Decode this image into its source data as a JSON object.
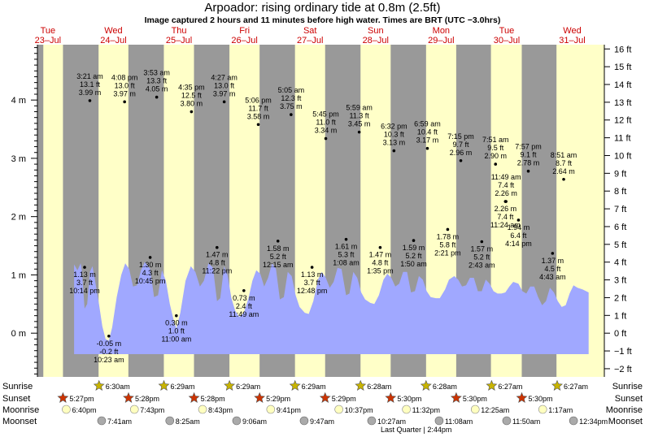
{
  "header": {
    "title": "Arpoador: rising  ordinary tide at 0.8m (2.5ft)",
    "subtitle": "Image captured 2 hours and 11 minutes before high water. Times are BRT (UTC −3.0hrs)"
  },
  "days": [
    {
      "dow": "Tue",
      "date": "23–Jul"
    },
    {
      "dow": "Wed",
      "date": "24–Jul"
    },
    {
      "dow": "Thu",
      "date": "25–Jul"
    },
    {
      "dow": "Fri",
      "date": "26–Jul"
    },
    {
      "dow": "Sat",
      "date": "27–Jul"
    },
    {
      "dow": "Sun",
      "date": "28–Jul"
    },
    {
      "dow": "Mon",
      "date": "29–Jul"
    },
    {
      "dow": "Tue",
      "date": "30–Jul"
    },
    {
      "dow": "Wed",
      "date": "31–Jul"
    }
  ],
  "colors": {
    "day": "#ffffc8",
    "night": "#999999",
    "water": "#a0a8ff",
    "dow_text": "#cc0000",
    "sun_star": "#c8b400",
    "sunset_star": "#cc3300",
    "moon_light": "#ffffc0",
    "moon_dark": "#aaaaaa"
  },
  "chart_data": {
    "type": "area",
    "y_left_label_unit": "m",
    "y_left_ticks": [
      "0 m",
      "1 m",
      "2 m",
      "3 m",
      "4 m"
    ],
    "y_left_values": [
      0,
      1,
      2,
      3,
      4
    ],
    "y_right_ticks": [
      "−2 ft",
      "−1 ft",
      "0 ft",
      "1 ft",
      "2 ft",
      "3 ft",
      "4 ft",
      "5 ft",
      "6 ft",
      "7 ft",
      "8 ft",
      "9 ft",
      "10 ft",
      "11 ft",
      "12 ft",
      "13 ft",
      "14 ft",
      "15 ft",
      "16 ft"
    ],
    "y_right_values_ft": [
      -2,
      -1,
      0,
      1,
      2,
      3,
      4,
      5,
      6,
      7,
      8,
      9,
      10,
      11,
      12,
      13,
      14,
      15,
      16
    ],
    "ylim_m": [
      -0.75,
      4.95
    ],
    "x_unit": "days since 23-Jul 00:00",
    "xlim_days": [
      0.34,
      8.99
    ],
    "daylight": [
      [
        0.43,
        0.73
      ],
      [
        1.273,
        1.728
      ],
      [
        2.269,
        2.729
      ],
      [
        3.27,
        3.73
      ],
      [
        4.27,
        4.73
      ],
      [
        5.27,
        5.73
      ],
      [
        6.27,
        6.73
      ],
      [
        7.26,
        7.73
      ],
      [
        8.26,
        8.99
      ]
    ],
    "extremes": [
      {
        "kind": "high",
        "label": "3:21 am",
        "ft": "13.1 ft",
        "m": "3.99 m",
        "x": 1.14,
        "v": 3.99
      },
      {
        "kind": "low",
        "label": "10:14 pm",
        "ft": "3.7 ft",
        "m": "1.13 m",
        "x": 1.06,
        "v": 1.13
      },
      {
        "kind": "high",
        "label": "4:08 pm",
        "ft": "13.0 ft",
        "m": "3.97 m",
        "x": 1.67,
        "v": 3.97
      },
      {
        "kind": "low",
        "label": "10:23 am",
        "ft": "-0.2 ft",
        "m": "-0.05 m",
        "x": 1.43,
        "v": -0.05
      },
      {
        "kind": "high",
        "label": "3:53 am",
        "ft": "13.3 ft",
        "m": "4.05 m",
        "x": 2.16,
        "v": 4.05
      },
      {
        "kind": "low",
        "label": "10:45 pm",
        "ft": "4.3 ft",
        "m": "1.30 m",
        "x": 2.06,
        "v": 1.3
      },
      {
        "kind": "high",
        "label": "4:35 pm",
        "ft": "12.5 ft",
        "m": "3.80 m",
        "x": 2.69,
        "v": 3.8
      },
      {
        "kind": "low",
        "label": "11:00 am",
        "ft": "1.0 ft",
        "m": "0.30 m",
        "x": 2.46,
        "v": 0.3
      },
      {
        "kind": "high",
        "label": "4:27 am",
        "ft": "13.0 ft",
        "m": "3.97 m",
        "x": 3.19,
        "v": 3.97
      },
      {
        "kind": "low",
        "label": "11:22 pm",
        "ft": "4.8 ft",
        "m": "1.47 m",
        "x": 3.08,
        "v": 1.47
      },
      {
        "kind": "high",
        "label": "5:06 pm",
        "ft": "11.7 ft",
        "m": "3.58 m",
        "x": 3.71,
        "v": 3.58
      },
      {
        "kind": "low",
        "label": "11:49 am",
        "ft": "2.4 ft",
        "m": "0.73 m",
        "x": 3.49,
        "v": 0.73
      },
      {
        "kind": "high",
        "label": "5:05 am",
        "ft": "12.3 ft",
        "m": "3.75 m",
        "x": 4.21,
        "v": 3.75
      },
      {
        "kind": "low",
        "label": "12:15 am",
        "ft": "5.2 ft",
        "m": "1.58 m",
        "x": 4.01,
        "v": 1.58
      },
      {
        "kind": "low",
        "label": "12:48 pm",
        "ft": "3.7 ft",
        "m": "1.13 m",
        "x": 4.53,
        "v": 1.13
      },
      {
        "kind": "high",
        "label": "5:45 pm",
        "ft": "11.0 ft",
        "m": "3.34 m",
        "x": 4.74,
        "v": 3.34
      },
      {
        "kind": "high",
        "label": "5:59 am",
        "ft": "11.3 ft",
        "m": "3.45 m",
        "x": 5.25,
        "v": 3.45
      },
      {
        "kind": "low",
        "label": "1:08 am",
        "ft": "5.3 ft",
        "m": "1.61 m",
        "x": 5.05,
        "v": 1.61
      },
      {
        "kind": "low",
        "label": "1:35 pm",
        "ft": "4.8 ft",
        "m": "1.47 m",
        "x": 5.57,
        "v": 1.47
      },
      {
        "kind": "high",
        "label": "6:32 pm",
        "ft": "10.3 ft",
        "m": "3.13 m",
        "x": 5.78,
        "v": 3.13
      },
      {
        "kind": "high",
        "label": "6:59 am",
        "ft": "10.4 ft",
        "m": "3.17 m",
        "x": 6.29,
        "v": 3.17
      },
      {
        "kind": "low",
        "label": "1:50 am",
        "ft": "5.2 ft",
        "m": "1.59 m",
        "x": 6.08,
        "v": 1.59
      },
      {
        "kind": "low",
        "label": "2:21 pm",
        "ft": "5.8 ft",
        "m": "1.78 m",
        "x": 6.6,
        "v": 1.78
      },
      {
        "kind": "high",
        "label": "7:15 pm",
        "ft": "9.7 ft",
        "m": "2.96 m",
        "x": 6.8,
        "v": 2.96
      },
      {
        "kind": "high",
        "label": "7:51 am",
        "ft": "9.5 ft",
        "m": "2.90 m",
        "x": 7.33,
        "v": 2.9
      },
      {
        "kind": "low",
        "label": "2:43 am",
        "ft": "5.2 ft",
        "m": "1.57 m",
        "x": 7.12,
        "v": 1.57
      },
      {
        "kind": "high",
        "label": "11:49 am",
        "ft": "7.4 ft",
        "m": "2.26 m",
        "x": 7.49,
        "v": 2.26
      },
      {
        "kind": "low",
        "label": "11:24 am",
        "ft": "7.4 ft",
        "m": "2.26 m",
        "x": 7.48,
        "v": 2.26
      },
      {
        "kind": "high",
        "label": "7:57 pm",
        "ft": "9.1 ft",
        "m": "2.78 m",
        "x": 7.83,
        "v": 2.78
      },
      {
        "kind": "low",
        "label": "4:14 pm",
        "ft": "6.4 ft",
        "m": "1.94 m",
        "x": 7.68,
        "v": 1.94
      },
      {
        "kind": "high",
        "label": "8:51 am",
        "ft": "8.7 ft",
        "m": "2.64 m",
        "x": 8.37,
        "v": 2.64
      },
      {
        "kind": "low",
        "label": "4:43 am",
        "ft": "4.5 ft",
        "m": "1.37 m",
        "x": 8.2,
        "v": 1.37
      }
    ],
    "tide_curve": [
      [
        0.9,
        1.18
      ],
      [
        0.95,
        1.08
      ],
      [
        1.0,
        1.2
      ],
      [
        1.02,
        1.05
      ],
      [
        1.06,
        0.42
      ],
      [
        1.1,
        0.5
      ],
      [
        1.14,
        1.05
      ],
      [
        1.18,
        1.15
      ],
      [
        1.22,
        0.9
      ],
      [
        1.28,
        0.5
      ],
      [
        1.33,
        0.12
      ],
      [
        1.38,
        -0.1
      ],
      [
        1.43,
        -0.13
      ],
      [
        1.48,
        0.1
      ],
      [
        1.55,
        0.62
      ],
      [
        1.62,
        1.0
      ],
      [
        1.68,
        1.2
      ],
      [
        1.74,
        1.1
      ],
      [
        1.8,
        0.8
      ],
      [
        1.86,
        0.82
      ],
      [
        1.92,
        1.08
      ],
      [
        1.98,
        1.22
      ],
      [
        2.06,
        1.1
      ],
      [
        2.12,
        0.62
      ],
      [
        2.18,
        0.65
      ],
      [
        2.24,
        1.08
      ],
      [
        2.3,
        0.9
      ],
      [
        2.36,
        0.5
      ],
      [
        2.42,
        0.22
      ],
      [
        2.46,
        0.08
      ],
      [
        2.52,
        0.35
      ],
      [
        2.6,
        0.9
      ],
      [
        2.68,
        1.15
      ],
      [
        2.75,
        1.05
      ],
      [
        2.82,
        0.8
      ],
      [
        2.88,
        0.9
      ],
      [
        2.95,
        1.2
      ],
      [
        3.02,
        1.12
      ],
      [
        3.08,
        0.55
      ],
      [
        3.13,
        0.6
      ],
      [
        3.19,
        1.15
      ],
      [
        3.24,
        1.0
      ],
      [
        3.3,
        0.6
      ],
      [
        3.36,
        0.38
      ],
      [
        3.42,
        0.28
      ],
      [
        3.49,
        0.35
      ],
      [
        3.56,
        0.6
      ],
      [
        3.62,
        0.9
      ],
      [
        3.68,
        1.08
      ],
      [
        3.74,
        1.02
      ],
      [
        3.8,
        0.8
      ],
      [
        3.86,
        0.95
      ],
      [
        3.92,
        1.2
      ],
      [
        3.98,
        1.1
      ],
      [
        4.04,
        0.58
      ],
      [
        4.1,
        0.62
      ],
      [
        4.16,
        1.05
      ],
      [
        4.22,
        0.98
      ],
      [
        4.28,
        0.65
      ],
      [
        4.34,
        0.45
      ],
      [
        4.42,
        0.35
      ],
      [
        4.48,
        0.33
      ],
      [
        4.55,
        0.55
      ],
      [
        4.62,
        0.92
      ],
      [
        4.68,
        1.05
      ],
      [
        4.74,
        0.95
      ],
      [
        4.8,
        0.78
      ],
      [
        4.86,
        0.88
      ],
      [
        4.92,
        1.12
      ],
      [
        4.98,
        1.1
      ],
      [
        5.05,
        0.65
      ],
      [
        5.1,
        0.68
      ],
      [
        5.16,
        1.05
      ],
      [
        5.22,
        0.95
      ],
      [
        5.28,
        0.7
      ],
      [
        5.34,
        0.58
      ],
      [
        5.42,
        0.52
      ],
      [
        5.48,
        0.5
      ],
      [
        5.55,
        0.65
      ],
      [
        5.62,
        0.92
      ],
      [
        5.68,
        1.02
      ],
      [
        5.74,
        0.95
      ],
      [
        5.8,
        0.8
      ],
      [
        5.86,
        0.85
      ],
      [
        5.92,
        1.05
      ],
      [
        5.98,
        1.05
      ],
      [
        6.04,
        0.7
      ],
      [
        6.1,
        0.72
      ],
      [
        6.16,
        0.98
      ],
      [
        6.22,
        0.92
      ],
      [
        6.28,
        0.72
      ],
      [
        6.34,
        0.62
      ],
      [
        6.42,
        0.6
      ],
      [
        6.48,
        0.6
      ],
      [
        6.56,
        0.75
      ],
      [
        6.62,
        0.92
      ],
      [
        6.7,
        0.98
      ],
      [
        6.76,
        0.92
      ],
      [
        6.82,
        0.8
      ],
      [
        6.88,
        0.82
      ],
      [
        6.94,
        0.95
      ],
      [
        7.0,
        0.95
      ],
      [
        7.06,
        0.72
      ],
      [
        7.12,
        0.72
      ],
      [
        7.18,
        0.92
      ],
      [
        7.24,
        0.85
      ],
      [
        7.3,
        0.72
      ],
      [
        7.36,
        0.68
      ],
      [
        7.42,
        0.68
      ],
      [
        7.48,
        0.7
      ],
      [
        7.54,
        0.8
      ],
      [
        7.6,
        0.88
      ],
      [
        7.68,
        0.85
      ],
      [
        7.74,
        0.72
      ],
      [
        7.8,
        0.68
      ],
      [
        7.86,
        0.8
      ],
      [
        7.92,
        0.8
      ],
      [
        7.98,
        0.62
      ],
      [
        8.04,
        0.48
      ],
      [
        8.1,
        0.55
      ],
      [
        8.16,
        0.78
      ],
      [
        8.22,
        0.7
      ],
      [
        8.28,
        0.55
      ],
      [
        8.34,
        0.45
      ],
      [
        8.4,
        0.48
      ],
      [
        8.46,
        0.68
      ],
      [
        8.52,
        0.82
      ],
      [
        8.58,
        0.78
      ],
      [
        8.66,
        0.75
      ],
      [
        8.75,
        0.7
      ]
    ]
  },
  "astro": {
    "row_labels": [
      "Sunrise",
      "Sunset",
      "Moonrise",
      "Moonset"
    ],
    "sunrise": [
      {
        "x": 1.28,
        "label": "6:30am"
      },
      {
        "x": 2.27,
        "label": "6:29am"
      },
      {
        "x": 3.27,
        "label": "6:29am"
      },
      {
        "x": 4.27,
        "label": "6:29am"
      },
      {
        "x": 5.27,
        "label": "6:28am"
      },
      {
        "x": 6.27,
        "label": "6:28am"
      },
      {
        "x": 7.27,
        "label": "6:27am"
      },
      {
        "x": 8.27,
        "label": "6:27am"
      }
    ],
    "sunset": [
      {
        "x": 0.73,
        "label": "5:27pm"
      },
      {
        "x": 1.73,
        "label": "5:28pm"
      },
      {
        "x": 2.73,
        "label": "5:28pm"
      },
      {
        "x": 3.73,
        "label": "5:29pm"
      },
      {
        "x": 4.73,
        "label": "5:29pm"
      },
      {
        "x": 5.73,
        "label": "5:30pm"
      },
      {
        "x": 6.73,
        "label": "5:30pm"
      },
      {
        "x": 7.73,
        "label": "5:30pm"
      }
    ],
    "moonrise": [
      {
        "x": 0.78,
        "label": "6:40pm"
      },
      {
        "x": 1.82,
        "label": "7:43pm"
      },
      {
        "x": 2.86,
        "label": "8:43pm"
      },
      {
        "x": 3.9,
        "label": "9:41pm"
      },
      {
        "x": 4.94,
        "label": "10:37pm"
      },
      {
        "x": 5.97,
        "label": "11:32pm"
      },
      {
        "x": 7.02,
        "label": "12:25am"
      },
      {
        "x": 8.05,
        "label": "1:17am"
      }
    ],
    "moonset": [
      {
        "x": 1.32,
        "label": "7:41am"
      },
      {
        "x": 2.36,
        "label": "8:25am"
      },
      {
        "x": 3.38,
        "label": "9:06am"
      },
      {
        "x": 4.41,
        "label": "9:47am"
      },
      {
        "x": 5.44,
        "label": "10:27am"
      },
      {
        "x": 6.47,
        "label": "11:08am"
      },
      {
        "x": 7.5,
        "label": "11:50am"
      },
      {
        "x": 8.52,
        "label": "12:34pm"
      }
    ],
    "phase": {
      "x": 6.12,
      "label": "Last Quarter | 2:44pm"
    }
  }
}
